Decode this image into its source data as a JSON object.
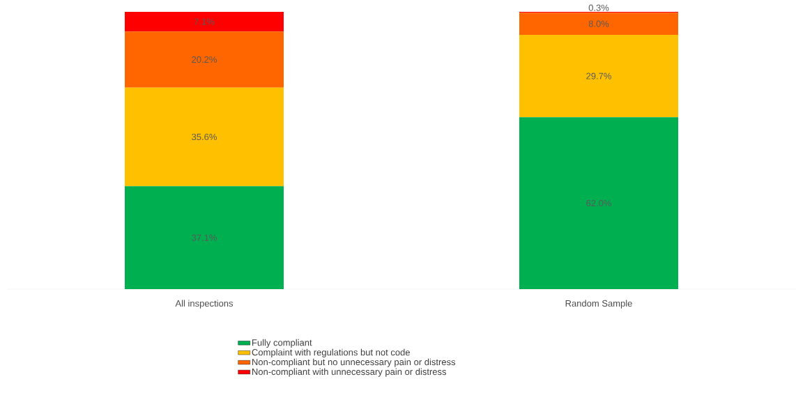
{
  "chart_data": {
    "type": "bar",
    "stacked": true,
    "categories": [
      "All inspections",
      "Random Sample"
    ],
    "series": [
      {
        "name": "Fully compliant",
        "color": "#00b050",
        "values": [
          37.1,
          62.0
        ],
        "value_labels": [
          "37.1%",
          "62.0%"
        ]
      },
      {
        "name": "Complaint with regulations but not code",
        "color": "#ffc000",
        "values": [
          35.6,
          29.7
        ],
        "value_labels": [
          "35.6%",
          "29.7%"
        ]
      },
      {
        "name": "Non-compliant but no unnecessary pain or distress",
        "color": "#ff6600",
        "values": [
          20.2,
          8.0
        ],
        "value_labels": [
          "20.2%",
          "8.0%"
        ]
      },
      {
        "name": "Non-compliant with unnecessary pain or distress",
        "color": "#ff0000",
        "values": [
          7.1,
          0.3
        ],
        "value_labels": [
          "7.1%",
          "0.3%"
        ]
      }
    ],
    "legend": "bottom"
  }
}
